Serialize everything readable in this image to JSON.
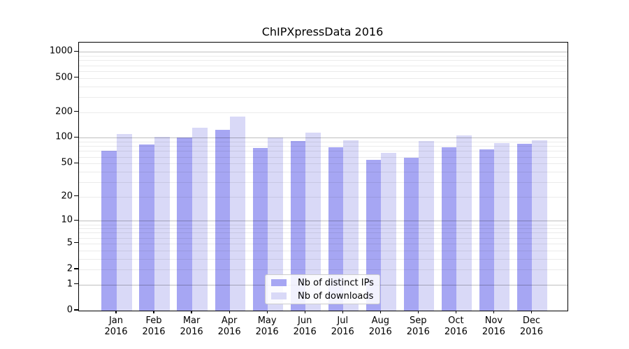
{
  "chart_data": {
    "type": "bar",
    "title": "ChIPXpressData 2016",
    "categories": [
      "Jan 2016",
      "Feb 2016",
      "Mar 2016",
      "Apr 2016",
      "May 2016",
      "Jun 2016",
      "Jul 2016",
      "Aug 2016",
      "Sep 2016",
      "Oct 2016",
      "Nov 2016",
      "Dec 2016"
    ],
    "series": [
      {
        "name": "Nb of distinct IPs",
        "color": "#a6a6f3",
        "values": [
          70,
          84,
          100,
          125,
          76,
          92,
          78,
          55,
          58,
          77,
          73,
          85
        ]
      },
      {
        "name": "Nb of downloads",
        "color": "#d9d9f7",
        "values": [
          110,
          102,
          132,
          177,
          101,
          116,
          94,
          66,
          91,
          106,
          87,
          94
        ]
      }
    ],
    "y_axis": {
      "scale": "log10(value+1)",
      "ticks": [
        1000,
        500,
        200,
        100,
        50,
        20,
        10,
        5,
        2,
        1,
        0
      ],
      "major_grid": [
        1,
        10,
        100,
        1000
      ],
      "minor_grid": [
        2,
        3,
        4,
        5,
        6,
        7,
        8,
        9,
        20,
        30,
        40,
        50,
        60,
        70,
        80,
        90,
        200,
        300,
        400,
        500,
        600,
        700,
        800,
        900
      ],
      "ylim": [
        0,
        1280
      ]
    },
    "xlabel": "",
    "ylabel": "",
    "grid": "on",
    "legend_position": "lower center",
    "colors": {
      "frame": "#000000",
      "major_gridline": "rgba(0,0,0,0.25)",
      "minor_gridline": "rgba(0,0,0,0.08)"
    }
  }
}
